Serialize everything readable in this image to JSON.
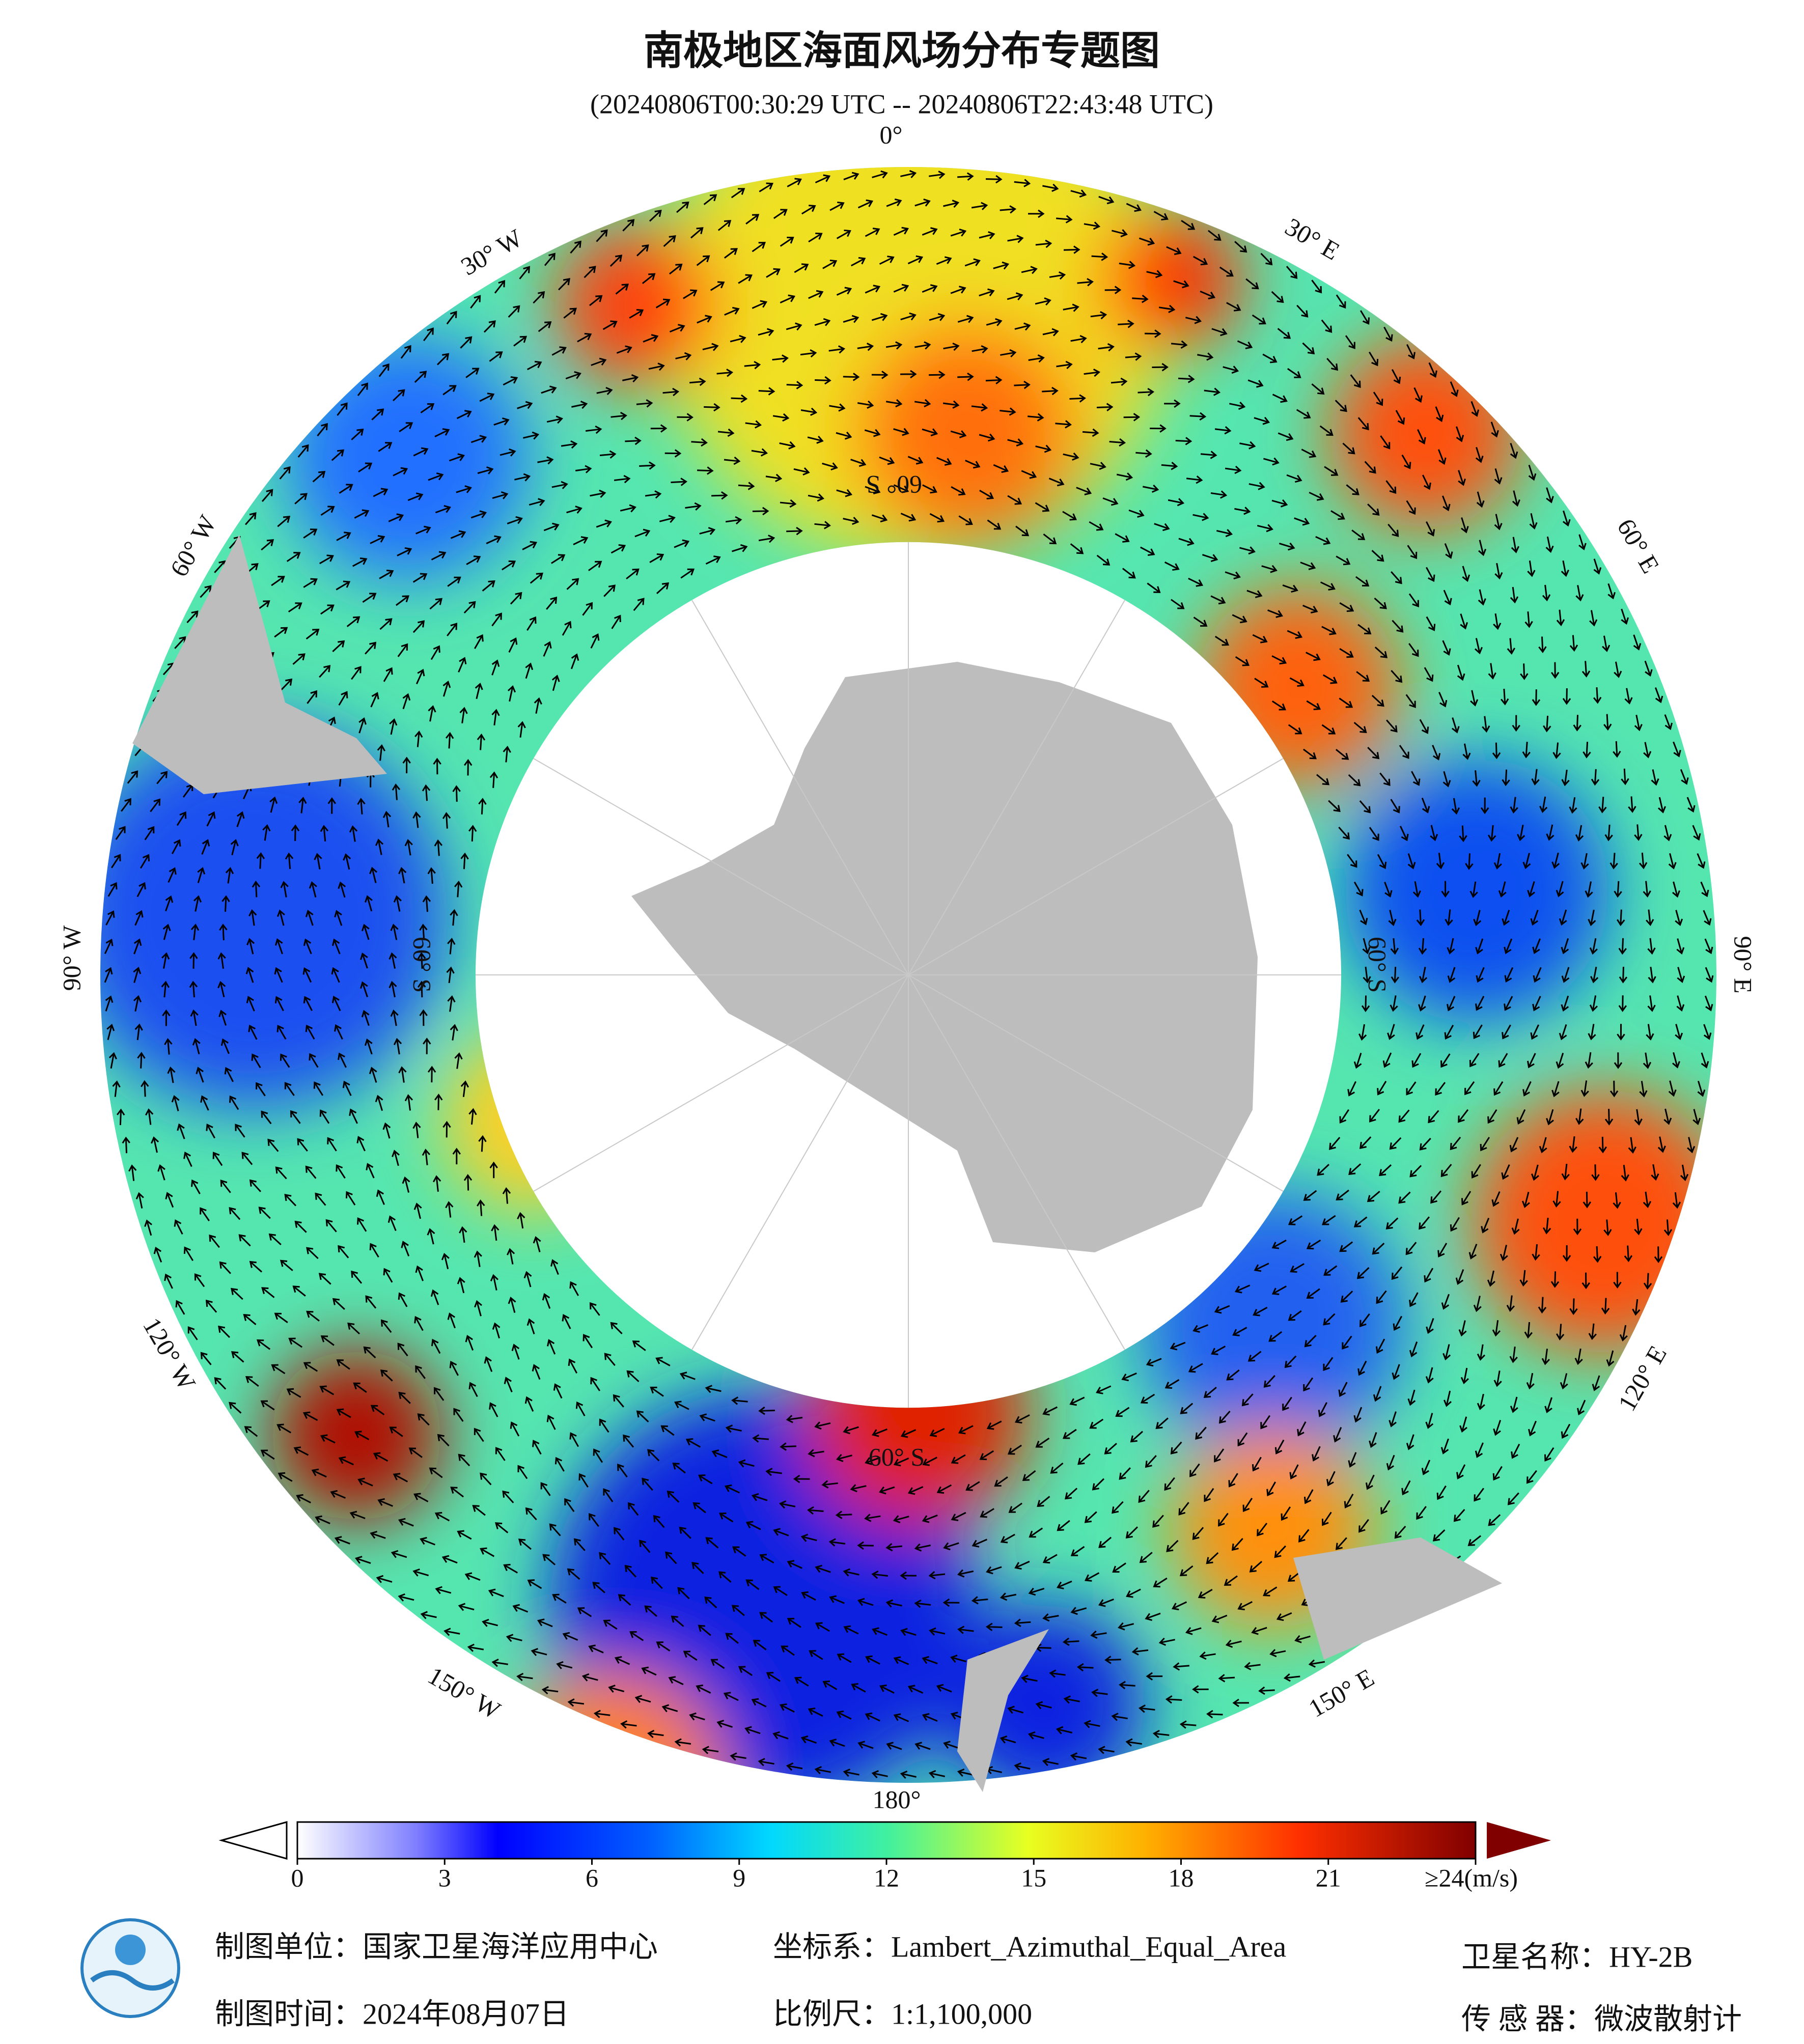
{
  "header": {
    "title": "南极地区海面风场分布专题图",
    "subtitle": "(20240806T00:30:29 UTC -- 20240806T22:43:48 UTC)"
  },
  "map": {
    "longitude_labels": [
      "0°",
      "30° E",
      "60° E",
      "90° E",
      "120° E",
      "150° E",
      "180°",
      "150° W",
      "120° W",
      "90° W",
      "60° W",
      "30° W"
    ],
    "latitude_labels": [
      "60° S",
      "60° S",
      "60° S",
      "60° S"
    ]
  },
  "colorbar": {
    "range": [
      0,
      24
    ],
    "ticks": [
      0,
      3,
      6,
      9,
      12,
      15,
      18,
      21,
      {
        "value": 24,
        "label": "≥24(m/s)"
      }
    ]
  },
  "footer": {
    "producer": "制图单位：国家卫星海洋应用中心",
    "date": "制图时间：2024年08月07日",
    "projection": "坐标系：Lambert_Azimuthal_Equal_Area",
    "scale": "比例尺：1:1,100,000",
    "satellite": "卫星名称：HY-2B",
    "sensor": "传 感 器：微波散射计"
  }
}
